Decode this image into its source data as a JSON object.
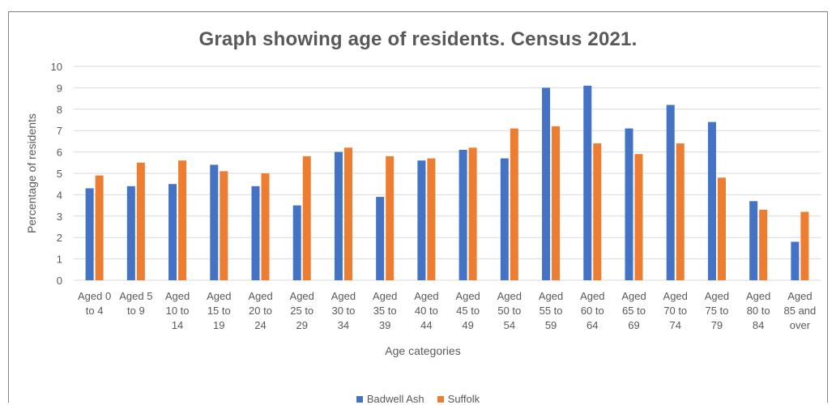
{
  "colors": {
    "series1": "#4472C4",
    "series2": "#ED7D31",
    "grid": "#d9d9d9",
    "text": "#595959"
  },
  "chart_data": {
    "type": "bar",
    "title": "Graph showing age of residents. Census 2021.",
    "xlabel": "Age categories",
    "ylabel": "Percentage of residents",
    "ylim": [
      0,
      10
    ],
    "yticks": [
      "0",
      "1",
      "2",
      "3",
      "4",
      "5",
      "6",
      "7",
      "8",
      "9",
      "10"
    ],
    "grid": true,
    "legend_position": "bottom",
    "categories": [
      [
        "Aged 0",
        "to 4"
      ],
      [
        "Aged 5",
        "to 9"
      ],
      [
        "Aged",
        "10 to",
        "14"
      ],
      [
        "Aged",
        "15 to",
        "19"
      ],
      [
        "Aged",
        "20 to",
        "24"
      ],
      [
        "Aged",
        "25 to",
        "29"
      ],
      [
        "Aged",
        "30 to",
        "34"
      ],
      [
        "Aged",
        "35 to",
        "39"
      ],
      [
        "Aged",
        "40 to",
        "44"
      ],
      [
        "Aged",
        "45 to",
        "49"
      ],
      [
        "Aged",
        "50 to",
        "54"
      ],
      [
        "Aged",
        "55 to",
        "59"
      ],
      [
        "Aged",
        "60 to",
        "64"
      ],
      [
        "Aged",
        "65 to",
        "69"
      ],
      [
        "Aged",
        "70 to",
        "74"
      ],
      [
        "Aged",
        "75 to",
        "79"
      ],
      [
        "Aged",
        "80 to",
        "84"
      ],
      [
        "Aged",
        "85 and",
        "over"
      ]
    ],
    "series": [
      {
        "name": "Badwell Ash",
        "values": [
          4.3,
          4.4,
          4.5,
          5.4,
          4.4,
          3.5,
          6.0,
          3.9,
          5.6,
          6.1,
          5.7,
          9.0,
          9.1,
          7.1,
          8.2,
          7.4,
          3.7,
          1.8
        ]
      },
      {
        "name": "Suffolk",
        "values": [
          4.9,
          5.5,
          5.6,
          5.1,
          5.0,
          5.8,
          6.2,
          5.8,
          5.7,
          6.2,
          7.1,
          7.2,
          6.4,
          5.9,
          6.4,
          4.8,
          3.3,
          3.2
        ]
      }
    ]
  }
}
